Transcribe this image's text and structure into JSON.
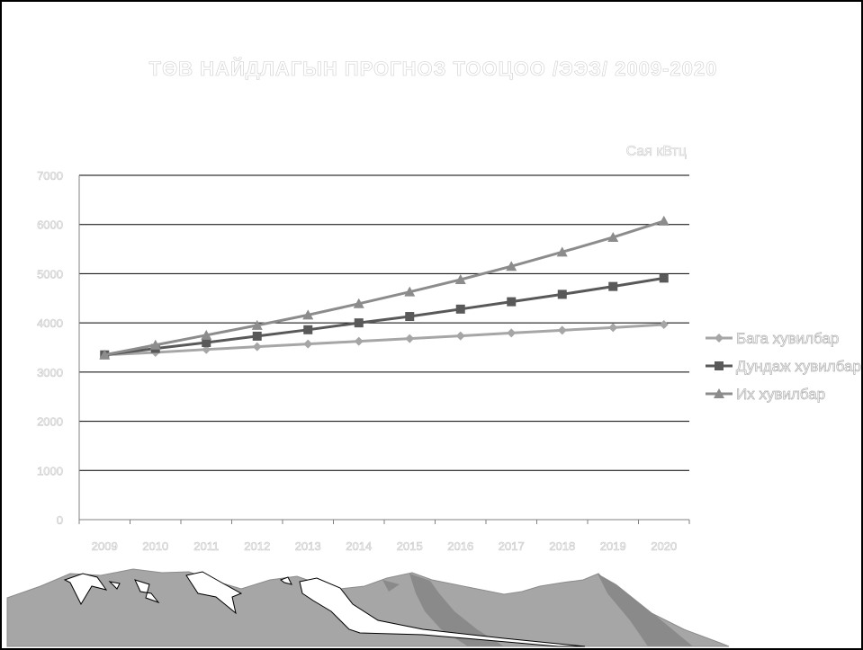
{
  "chart_data": {
    "type": "line",
    "title": "ТӨВ НАЙДЛАГЫН ПРОГНОЗ ТООЦОО /ЭЭЗ/ 2009-2020",
    "unit": "Сая кВтц",
    "categories": [
      "2009",
      "2010",
      "2011",
      "2012",
      "2013",
      "2014",
      "2015",
      "2016",
      "2017",
      "2018",
      "2019",
      "2020"
    ],
    "y_ticks": [
      "0",
      "1000",
      "2000",
      "3000",
      "4000",
      "5000",
      "6000",
      "7000"
    ],
    "ylim": [
      0,
      7000
    ],
    "grid": true,
    "legend_position": "right",
    "series": [
      {
        "name": "Бага хувилбар",
        "marker": "diamond",
        "color": "#a6a6a6",
        "values": [
          3350,
          3400,
          3460,
          3515,
          3570,
          3625,
          3680,
          3735,
          3795,
          3850,
          3905,
          3965
        ]
      },
      {
        "name": "Дундаж хувилбар",
        "marker": "square",
        "color": "#595959",
        "values": [
          3350,
          3480,
          3600,
          3730,
          3860,
          4000,
          4130,
          4280,
          4430,
          4580,
          4740,
          4910
        ]
      },
      {
        "name": "Их хувилбар",
        "marker": "triangle",
        "color": "#8c8c8c",
        "values": [
          3350,
          3550,
          3750,
          3950,
          4160,
          4390,
          4630,
          4880,
          5150,
          5440,
          5740,
          6070
        ]
      }
    ]
  },
  "decor": {
    "mountain_color": "#a6a6a6",
    "mountain_dark": "#8a8a8a",
    "snow_color": "#ffffff"
  }
}
